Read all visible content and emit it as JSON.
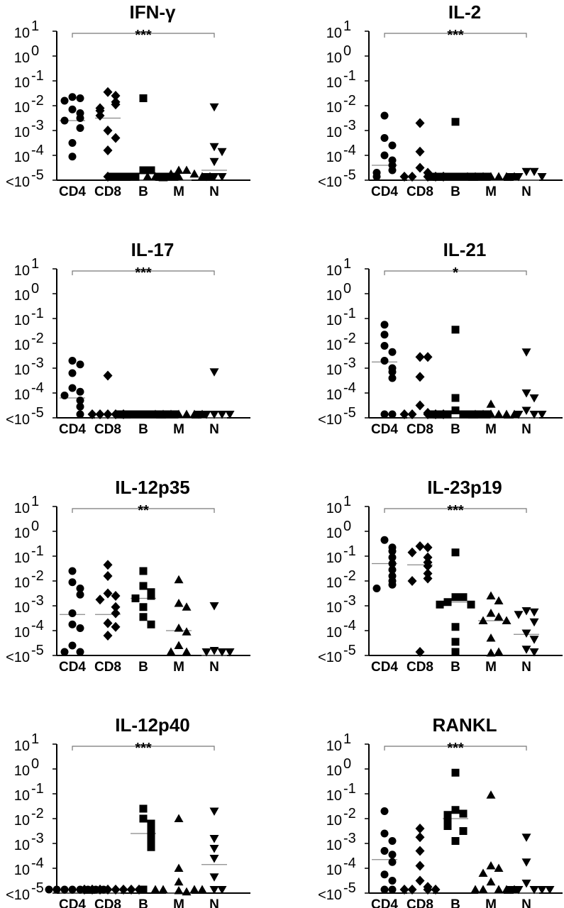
{
  "chart_data": [
    {
      "type": "scatter",
      "title": "IFN-γ",
      "significance": "***",
      "categories": [
        "CD4",
        "CD8",
        "B",
        "M",
        "N"
      ],
      "ytick_labels": [
        "<10",
        "10",
        "10",
        "10",
        "10",
        "10",
        "10"
      ],
      "ytick_exponents": [
        "-5",
        "-4",
        "-3",
        "-2",
        "-1",
        "0",
        "1"
      ],
      "ylim_log10": [
        -5,
        1
      ],
      "yscale": "log",
      "medians_log10": [
        -2.6,
        -2.5,
        -5,
        -5,
        -4.6
      ],
      "series": [
        {
          "category": "CD4",
          "marker": "circle",
          "log10_values": [
            -1.65,
            -1.7,
            -1.8,
            -2.15,
            -2.3,
            -2.5,
            -2.6,
            -2.9,
            -3.5,
            -4.05
          ]
        },
        {
          "category": "CD8",
          "marker": "diamond",
          "log10_values": [
            -1.45,
            -1.6,
            -1.85,
            -1.95,
            -2.1,
            -2.2,
            -2.4,
            -3.0,
            -3.3,
            -3.8,
            -5.0
          ]
        },
        {
          "category": "B",
          "marker": "square",
          "log10_values": [
            -1.7,
            -4.6,
            -4.6,
            -5.0,
            -5.0,
            -5.0,
            -5.0,
            -5.0,
            -5.0,
            -5.0
          ]
        },
        {
          "category": "M",
          "marker": "triangle-up",
          "log10_values": [
            -4.6,
            -4.6,
            -4.75,
            -4.75,
            -4.9,
            -5.0,
            -5.0,
            -5.0,
            -5.0,
            -5.0
          ]
        },
        {
          "category": "N",
          "marker": "triangle-down",
          "log10_values": [
            -2.05,
            -3.65,
            -3.85,
            -4.25,
            -5.0,
            -5.0,
            -5.0
          ]
        }
      ]
    },
    {
      "type": "scatter",
      "title": "IL-2",
      "significance": "***",
      "categories": [
        "CD4",
        "CD8",
        "B",
        "M",
        "N"
      ],
      "ytick_labels": [
        "<10",
        "10",
        "10",
        "10",
        "10",
        "10",
        "10"
      ],
      "ytick_exponents": [
        "-5",
        "-4",
        "-3",
        "-2",
        "-1",
        "0",
        "1"
      ],
      "ylim_log10": [
        -5,
        1
      ],
      "yscale": "log",
      "medians_log10": [
        -4.4,
        -5,
        -5,
        -5,
        -5
      ],
      "series": [
        {
          "category": "CD4",
          "marker": "circle",
          "log10_values": [
            -2.4,
            -3.3,
            -3.6,
            -4.0,
            -4.2,
            -4.4,
            -4.6,
            -4.7,
            -5.0
          ]
        },
        {
          "category": "CD8",
          "marker": "diamond",
          "log10_values": [
            -2.7,
            -3.85,
            -4.5,
            -4.7,
            -5.0,
            -5.0,
            -5.0,
            -5.0,
            -5.0
          ]
        },
        {
          "category": "B",
          "marker": "square",
          "log10_values": [
            -2.65,
            -5.0,
            -5.0,
            -5.0,
            -5.0,
            -5.0,
            -5.0,
            -5.0,
            -5.0
          ]
        },
        {
          "category": "M",
          "marker": "triangle-up",
          "log10_values": [
            -5.0,
            -5.0,
            -5.0,
            -5.0,
            -5.0,
            -5.0,
            -5.0
          ]
        },
        {
          "category": "N",
          "marker": "triangle-down",
          "log10_values": [
            -4.65,
            -4.65,
            -5.0,
            -5.0,
            -5.0
          ]
        }
      ]
    },
    {
      "type": "scatter",
      "title": "IL-17",
      "significance": "***",
      "categories": [
        "CD4",
        "CD8",
        "B",
        "M",
        "N"
      ],
      "ytick_labels": [
        "<10",
        "10",
        "10",
        "10",
        "10",
        "10",
        "10"
      ],
      "ytick_exponents": [
        "-5",
        "-4",
        "-3",
        "-2",
        "-1",
        "0",
        "1"
      ],
      "ylim_log10": [
        -5,
        1
      ],
      "yscale": "log",
      "medians_log10": [
        -4.2,
        -5,
        -5,
        -5,
        -5
      ],
      "series": [
        {
          "category": "CD4",
          "marker": "circle",
          "log10_values": [
            -2.7,
            -2.85,
            -3.2,
            -3.8,
            -3.95,
            -4.1,
            -4.3,
            -4.55,
            -5.0
          ]
        },
        {
          "category": "CD8",
          "marker": "diamond",
          "log10_values": [
            -3.3,
            -5.0,
            -5.0,
            -5.0,
            -5.0,
            -5.0
          ]
        },
        {
          "category": "B",
          "marker": "square",
          "log10_values": [
            -5.0,
            -5.0,
            -5.0,
            -5.0,
            -5.0,
            -5.0,
            -5.0,
            -5.0
          ]
        },
        {
          "category": "M",
          "marker": "triangle-up",
          "log10_values": [
            -5.0,
            -5.0,
            -5.0,
            -5.0,
            -5.0,
            -5.0,
            -5.0
          ]
        },
        {
          "category": "N",
          "marker": "triangle-down",
          "log10_values": [
            -3.15,
            -5.0,
            -5.0,
            -5.0,
            -5.0,
            -5.0
          ]
        }
      ]
    },
    {
      "type": "scatter",
      "title": "IL-21",
      "significance": "*",
      "categories": [
        "CD4",
        "CD8",
        "B",
        "M",
        "N"
      ],
      "ytick_labels": [
        "<10",
        "10",
        "10",
        "10",
        "10",
        "10",
        "10"
      ],
      "ytick_exponents": [
        "-5",
        "-4",
        "-3",
        "-2",
        "-1",
        "0",
        "1"
      ],
      "ylim_log10": [
        -5,
        1
      ],
      "yscale": "log",
      "medians_log10": [
        -2.75,
        -5,
        -5,
        -5,
        -5
      ],
      "series": [
        {
          "category": "CD4",
          "marker": "circle",
          "log10_values": [
            -1.25,
            -1.65,
            -2.1,
            -2.35,
            -2.7,
            -3.0,
            -3.15,
            -3.4,
            -5.0,
            -5.0
          ]
        },
        {
          "category": "CD8",
          "marker": "diamond",
          "log10_values": [
            -2.55,
            -2.55,
            -3.35,
            -4.5,
            -4.8,
            -5.0,
            -5.0,
            -5.0,
            -5.0,
            -5.0
          ]
        },
        {
          "category": "B",
          "marker": "square",
          "log10_values": [
            -1.45,
            -4.2,
            -4.7,
            -5.0,
            -5.0,
            -5.0,
            -5.0,
            -5.0,
            -5.0,
            -5.0
          ]
        },
        {
          "category": "M",
          "marker": "triangle-up",
          "log10_values": [
            -4.45,
            -4.85,
            -5.0,
            -5.0,
            -5.0,
            -5.0,
            -5.0
          ]
        },
        {
          "category": "N",
          "marker": "triangle-down",
          "log10_values": [
            -2.35,
            -4.0,
            -4.2,
            -4.7,
            -5.0,
            -5.0,
            -5.0
          ]
        }
      ]
    },
    {
      "type": "scatter",
      "title": "IL-12p35",
      "significance": "**",
      "categories": [
        "CD4",
        "CD8",
        "B",
        "M",
        "N"
      ],
      "ytick_labels": [
        "<10",
        "10",
        "10",
        "10",
        "10",
        "10",
        "10"
      ],
      "ytick_exponents": [
        "-5",
        "-4",
        "-3",
        "-2",
        "-1",
        "0",
        "1"
      ],
      "ylim_log10": [
        -5,
        1
      ],
      "yscale": "log",
      "medians_log10": [
        -3.35,
        -3.35,
        -2.7,
        -4.0,
        -5
      ],
      "series": [
        {
          "category": "CD4",
          "marker": "circle",
          "log10_values": [
            -1.6,
            -2.05,
            -2.3,
            -2.55,
            -3.3,
            -3.75,
            -3.9,
            -4.6,
            -5.0,
            -5.0
          ]
        },
        {
          "category": "CD8",
          "marker": "diamond",
          "log10_values": [
            -1.35,
            -1.8,
            -2.5,
            -2.6,
            -2.75,
            -3.05,
            -3.3,
            -3.7,
            -3.85,
            -4.2
          ]
        },
        {
          "category": "B",
          "marker": "square",
          "log10_values": [
            -1.6,
            -2.2,
            -2.45,
            -2.6,
            -2.7,
            -3.05,
            -3.45,
            -3.75
          ]
        },
        {
          "category": "M",
          "marker": "triangle-up",
          "log10_values": [
            -1.95,
            -2.9,
            -3.05,
            -3.9,
            -4.05,
            -4.6,
            -5.0,
            -5.0
          ]
        },
        {
          "category": "N",
          "marker": "triangle-down",
          "log10_values": [
            -3.0,
            -4.8,
            -5.0,
            -5.0,
            -5.0
          ]
        }
      ]
    },
    {
      "type": "scatter",
      "title": "IL-23p19",
      "significance": "***",
      "categories": [
        "CD4",
        "CD8",
        "B",
        "M",
        "N"
      ],
      "ytick_labels": [
        "<10",
        "10",
        "10",
        "10",
        "10",
        "10",
        "10"
      ],
      "ytick_exponents": [
        "-5",
        "-4",
        "-3",
        "-2",
        "-1",
        "0",
        "1"
      ],
      "ylim_log10": [
        -5,
        1
      ],
      "yscale": "log",
      "medians_log10": [
        -1.3,
        -1.35,
        -2.85,
        -3.6,
        -4.15
      ],
      "series": [
        {
          "category": "CD4",
          "marker": "circle",
          "log10_values": [
            -0.35,
            -0.65,
            -0.8,
            -1.05,
            -1.3,
            -1.55,
            -1.8,
            -2.0,
            -2.15,
            -2.3
          ]
        },
        {
          "category": "CD8",
          "marker": "diamond",
          "log10_values": [
            -0.6,
            -0.65,
            -0.85,
            -1.05,
            -1.25,
            -1.4,
            -1.7,
            -1.9,
            -2.0,
            -5.0
          ]
        },
        {
          "category": "B",
          "marker": "square",
          "log10_values": [
            -0.85,
            -2.65,
            -2.65,
            -2.85,
            -2.95,
            -2.95,
            -3.85,
            -4.45,
            -5.0
          ]
        },
        {
          "category": "M",
          "marker": "triangle-up",
          "log10_values": [
            -2.6,
            -2.8,
            -3.3,
            -3.45,
            -3.6,
            -3.6,
            -4.3,
            -4.9,
            -5.0
          ]
        },
        {
          "category": "N",
          "marker": "triangle-down",
          "log10_values": [
            -3.2,
            -3.25,
            -3.35,
            -3.65,
            -4.1,
            -4.35,
            -4.75,
            -5.0
          ]
        }
      ]
    },
    {
      "type": "scatter",
      "title": "IL-12p40",
      "significance": "***",
      "categories": [
        "CD4",
        "CD8",
        "B",
        "M",
        "N"
      ],
      "ytick_labels": [
        "<10",
        "10",
        "10",
        "10",
        "10",
        "10",
        "10"
      ],
      "ytick_exponents": [
        "-5",
        "-4",
        "-3",
        "-2",
        "-1",
        "0",
        "1"
      ],
      "ylim_log10": [
        -5,
        1
      ],
      "yscale": "log",
      "medians_log10": [
        -5,
        -5,
        -2.6,
        -5,
        -3.85
      ],
      "series": [
        {
          "category": "CD4",
          "marker": "circle",
          "log10_values": [
            -5.0,
            -5.0,
            -5.0,
            -5.0,
            -5.0,
            -5.0,
            -5.0,
            -5.0
          ]
        },
        {
          "category": "CD8",
          "marker": "diamond",
          "log10_values": [
            -5.0,
            -5.0,
            -5.0,
            -5.0,
            -5.0,
            -5.0,
            -5.0,
            -5.0
          ]
        },
        {
          "category": "B",
          "marker": "square",
          "log10_values": [
            -1.6,
            -2.0,
            -2.2,
            -2.4,
            -2.65,
            -2.85,
            -3.15,
            -5.0
          ]
        },
        {
          "category": "M",
          "marker": "triangle-up",
          "log10_values": [
            -2.0,
            -4.0,
            -4.55,
            -4.9,
            -4.95,
            -5.0,
            -5.0,
            -5.0,
            -5.0
          ]
        },
        {
          "category": "N",
          "marker": "triangle-down",
          "log10_values": [
            -1.7,
            -2.8,
            -3.2,
            -3.6,
            -4.35,
            -5.0,
            -5.0
          ]
        }
      ]
    },
    {
      "type": "scatter",
      "title": "RANKL",
      "significance": "***",
      "categories": [
        "CD4",
        "CD8",
        "B",
        "M",
        "N"
      ],
      "ytick_labels": [
        "<10",
        "10",
        "10",
        "10",
        "10",
        "10",
        "10"
      ],
      "ytick_exponents": [
        "-5",
        "-4",
        "-3",
        "-2",
        "-1",
        "0",
        "1"
      ],
      "ylim_log10": [
        -5,
        1
      ],
      "yscale": "log",
      "medians_log10": [
        -3.65,
        -5,
        -2.0,
        -5,
        -5
      ],
      "series": [
        {
          "category": "CD4",
          "marker": "circle",
          "log10_values": [
            -1.7,
            -2.6,
            -2.9,
            -3.3,
            -3.45,
            -3.75,
            -4.25,
            -4.5,
            -5.0,
            -5.0
          ]
        },
        {
          "category": "CD8",
          "marker": "diamond",
          "log10_values": [
            -2.4,
            -2.75,
            -3.3,
            -3.9,
            -4.5,
            -4.75,
            -5.0,
            -5.0,
            -5.0,
            -5.0
          ]
        },
        {
          "category": "B",
          "marker": "square",
          "log10_values": [
            -0.15,
            -1.65,
            -1.8,
            -1.85,
            -2.05,
            -2.15,
            -2.3,
            -2.5,
            -2.9
          ]
        },
        {
          "category": "M",
          "marker": "triangle-up",
          "log10_values": [
            -1.05,
            -3.9,
            -4.0,
            -4.2,
            -4.55,
            -5.0,
            -5.0,
            -5.0,
            -5.0,
            -5.0
          ]
        },
        {
          "category": "N",
          "marker": "triangle-down",
          "log10_values": [
            -2.75,
            -3.75,
            -4.6,
            -5.0,
            -5.0,
            -5.0,
            -5.0,
            -5.0
          ]
        }
      ]
    }
  ]
}
